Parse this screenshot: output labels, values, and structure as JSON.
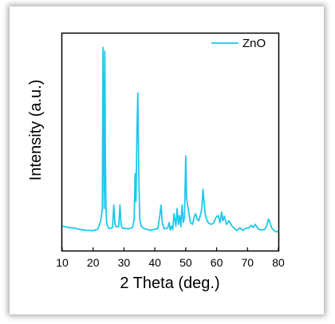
{
  "chart_data": {
    "type": "line",
    "xlabel": "2 Theta (deg.)",
    "ylabel": "Intensity (a.u.)",
    "xlim": [
      10,
      80
    ],
    "xticks": [
      "10",
      "20",
      "30",
      "40",
      "50",
      "60",
      "70",
      "80"
    ],
    "y_tick_labels_shown": false,
    "legend_position": "top-right",
    "series": [
      {
        "name": "ZnO",
        "color": "#1ec8ec",
        "x": [
          10,
          12,
          14,
          16,
          18,
          20,
          21.5,
          22.5,
          23.0,
          23.2,
          23.4,
          23.6,
          23.8,
          24.0,
          24.2,
          24.4,
          24.6,
          24.8,
          25.0,
          25.5,
          26.3,
          26.7,
          27.1,
          27.5,
          28.3,
          28.7,
          29.1,
          29.6,
          31.5,
          32.8,
          33.3,
          33.6,
          33.9,
          34.2,
          34.5,
          34.8,
          35.1,
          35.6,
          36.0,
          36.5,
          38.5,
          41.0,
          41.6,
          42.0,
          42.4,
          43.0,
          44.2,
          44.6,
          45.0,
          45.4,
          45.8,
          46.2,
          46.8,
          47.2,
          47.6,
          48.0,
          48.4,
          48.8,
          49.2,
          49.6,
          50.0,
          50.3,
          50.6,
          51.0,
          51.5,
          52.2,
          52.7,
          53.2,
          53.7,
          54.2,
          54.7,
          55.2,
          55.6,
          56.0,
          56.4,
          56.9,
          57.5,
          58.2,
          59.0,
          59.8,
          60.5,
          61.1,
          61.6,
          62.0,
          62.5,
          63.2,
          64.0,
          65.0,
          66.5,
          67.5,
          68.5,
          69.5,
          70.5,
          71.2,
          71.8,
          72.5,
          73.5,
          74.5,
          75.5,
          76.2,
          76.8,
          77.3,
          77.8,
          78.3,
          79.0,
          79.5,
          80
        ],
        "y": [
          7.0,
          6.6,
          6.4,
          6.0,
          5.8,
          5.7,
          6.1,
          8.5,
          12.0,
          58.0,
          32.0,
          12.0,
          57.0,
          24.0,
          11.0,
          8.0,
          7.2,
          6.8,
          6.5,
          6.3,
          6.6,
          13.0,
          7.5,
          6.8,
          6.9,
          13.0,
          7.2,
          6.4,
          6.2,
          6.6,
          9.0,
          22.0,
          14.0,
          34.0,
          45.0,
          22.0,
          9.0,
          7.0,
          6.6,
          6.3,
          5.8,
          6.3,
          10.0,
          13.0,
          8.0,
          6.2,
          6.5,
          8.0,
          5.9,
          7.0,
          6.0,
          10.5,
          7.0,
          12.0,
          7.5,
          10.0,
          6.8,
          13.0,
          8.0,
          9.5,
          27.0,
          15.0,
          13.0,
          11.0,
          8.0,
          7.5,
          9.5,
          10.5,
          9.0,
          8.5,
          10.0,
          12.0,
          17.5,
          13.0,
          10.0,
          8.5,
          7.8,
          7.5,
          7.8,
          9.5,
          10.0,
          8.0,
          11.0,
          8.5,
          9.8,
          7.5,
          8.5,
          7.0,
          5.7,
          6.5,
          5.8,
          6.4,
          6.5,
          7.2,
          6.6,
          7.5,
          6.2,
          5.9,
          6.0,
          7.0,
          9.0,
          8.0,
          6.5,
          6.0,
          5.5,
          5.3,
          5.8
        ]
      }
    ]
  }
}
